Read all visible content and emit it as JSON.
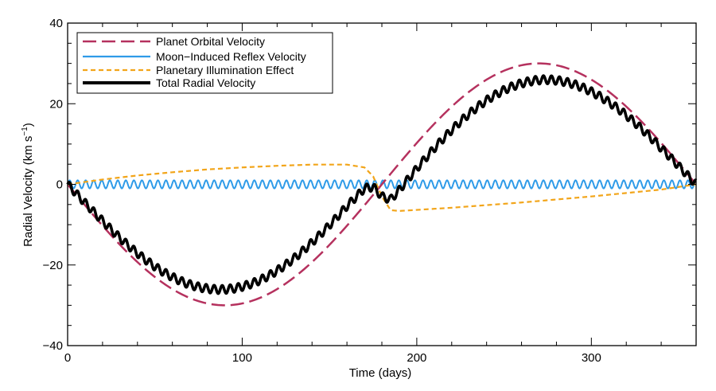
{
  "chart_data": {
    "type": "line",
    "title": "",
    "xlabel": "Time (days)",
    "ylabel_main": "Radial Velocity (km s",
    "ylabel_sup": "−1",
    "ylabel_close": ")",
    "xlim": [
      0,
      360
    ],
    "ylim": [
      -40,
      40
    ],
    "x_ticks": [
      0,
      100,
      200,
      300
    ],
    "x_tick_labels": [
      "0",
      "100",
      "200",
      "300"
    ],
    "y_ticks": [
      -40,
      -20,
      0,
      20,
      40
    ],
    "y_tick_labels": [
      "−40",
      "−20",
      "0",
      "20",
      "40"
    ],
    "grid": false,
    "legend_position": "top-left",
    "series": [
      {
        "name": "Planet Orbital Velocity",
        "color": "#b5315e",
        "style": "long-dash",
        "description": "sinusoid, amplitude 30 km/s, period 360 days, minimum -30 at ~90 days, maximum +30 at ~270 days",
        "x": [
          0,
          45,
          90,
          135,
          180,
          225,
          270,
          315,
          360
        ],
        "values": [
          0,
          -21.2,
          -30,
          -21.2,
          0,
          21.2,
          30,
          21.2,
          0
        ]
      },
      {
        "name": "Moon−Induced Reflex Velocity",
        "color": "#2f9be8",
        "style": "solid",
        "description": "small fast oscillation around 0, amplitude ~1 km/s, period ~4.6 days",
        "amplitude": 1.0,
        "period_days": 4.6
      },
      {
        "name": "Planetary Illumination Effect",
        "color": "#f2a51a",
        "style": "short-dash",
        "x": [
          0,
          20,
          40,
          60,
          80,
          100,
          120,
          140,
          160,
          170,
          175,
          180,
          185,
          190,
          220,
          260,
          300,
          340,
          360
        ],
        "values": [
          0,
          1.2,
          2.2,
          3.0,
          3.7,
          4.2,
          4.6,
          4.9,
          4.9,
          4.2,
          2.0,
          -3.0,
          -6.4,
          -6.6,
          -5.8,
          -4.5,
          -3.0,
          -1.3,
          0
        ]
      },
      {
        "name": "Total Radial Velocity",
        "color": "#000000",
        "style": "thick-solid",
        "description": "sum of the three components: minimum ~-26.5 near 90 days, maximum ~+26.5 near 270 days, with fast moon-induced wiggle"
      }
    ]
  }
}
